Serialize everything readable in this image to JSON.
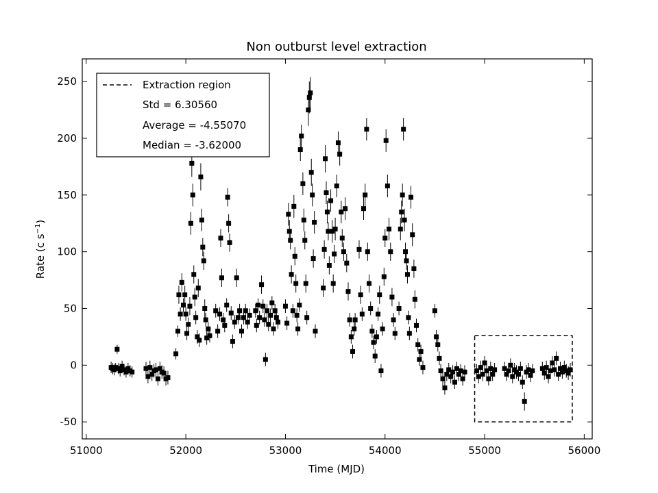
{
  "chart_data": {
    "type": "scatter",
    "title": "Non outburst level extraction",
    "xlabel": "Time (MJD)",
    "ylabel": "Rate (c s",
    "ylabel_sup": "−1",
    "ylabel_close": ")",
    "xlim": [
      50960,
      56080
    ],
    "ylim": [
      -65,
      270
    ],
    "x_ticks": [
      51000,
      52000,
      53000,
      54000,
      55000,
      56000
    ],
    "x_tick_labels": [
      "51000",
      "52000",
      "53000",
      "54000",
      "55000",
      "56000"
    ],
    "y_ticks": [
      -50,
      0,
      50,
      100,
      150,
      200,
      250
    ],
    "y_tick_labels": [
      "-50",
      "0",
      "50",
      "100",
      "150",
      "200",
      "250"
    ],
    "legend": {
      "placement": "top-left",
      "entries": [
        {
          "label": "Extraction region",
          "marker": "dashed-line"
        },
        {
          "label": "Std = 6.30560",
          "marker": "none"
        },
        {
          "label": "Average = -4.55070",
          "marker": "none"
        },
        {
          "label": "Median = -3.62000",
          "marker": "none"
        }
      ]
    },
    "extraction_region": {
      "x_range": [
        54900,
        55880
      ],
      "y_range": [
        -50,
        26
      ]
    },
    "series": [
      {
        "color": "#000000",
        "marker": "square",
        "points": [
          [
            51250,
            -2,
            5
          ],
          [
            51265,
            -3,
            5
          ],
          [
            51280,
            -4,
            5
          ],
          [
            51295,
            -2,
            4
          ],
          [
            51310,
            14,
            4
          ],
          [
            51325,
            -3,
            5
          ],
          [
            51340,
            -5,
            5
          ],
          [
            51360,
            -1,
            5
          ],
          [
            51380,
            -4,
            5
          ],
          [
            51400,
            -6,
            5
          ],
          [
            51420,
            -3,
            5
          ],
          [
            51440,
            -5,
            5
          ],
          [
            51460,
            -6,
            5
          ],
          [
            51600,
            -3,
            6
          ],
          [
            51620,
            -10,
            6
          ],
          [
            51640,
            -2,
            6
          ],
          [
            51660,
            -8,
            6
          ],
          [
            51680,
            -5,
            6
          ],
          [
            51700,
            -4,
            6
          ],
          [
            51720,
            -12,
            6
          ],
          [
            51740,
            -3,
            6
          ],
          [
            51760,
            -6,
            6
          ],
          [
            51780,
            -7,
            6
          ],
          [
            51800,
            -12,
            6
          ],
          [
            51820,
            -11,
            6
          ],
          [
            51900,
            10,
            5
          ],
          [
            51920,
            30,
            5
          ],
          [
            51930,
            62,
            8
          ],
          [
            51945,
            45,
            6
          ],
          [
            51960,
            73,
            8
          ],
          [
            51975,
            53,
            6
          ],
          [
            51990,
            62,
            8
          ],
          [
            52000,
            45,
            6
          ],
          [
            52010,
            28,
            6
          ],
          [
            52025,
            36,
            6
          ],
          [
            52040,
            52,
            8
          ],
          [
            52050,
            125,
            10
          ],
          [
            52060,
            178,
            12
          ],
          [
            52070,
            150,
            10
          ],
          [
            52080,
            80,
            8
          ],
          [
            52090,
            60,
            8
          ],
          [
            52100,
            42,
            6
          ],
          [
            52115,
            25,
            6
          ],
          [
            52125,
            68,
            8
          ],
          [
            52135,
            22,
            6
          ],
          [
            52150,
            166,
            12
          ],
          [
            52160,
            128,
            10
          ],
          [
            52170,
            104,
            8
          ],
          [
            52180,
            92,
            8
          ],
          [
            52190,
            50,
            8
          ],
          [
            52200,
            40,
            6
          ],
          [
            52210,
            24,
            6
          ],
          [
            52225,
            32,
            6
          ],
          [
            52240,
            26,
            6
          ],
          [
            52300,
            48,
            6
          ],
          [
            52320,
            30,
            6
          ],
          [
            52340,
            45,
            6
          ],
          [
            52350,
            112,
            8
          ],
          [
            52360,
            77,
            8
          ],
          [
            52375,
            40,
            6
          ],
          [
            52390,
            35,
            6
          ],
          [
            52410,
            53,
            6
          ],
          [
            52420,
            148,
            8
          ],
          [
            52430,
            125,
            8
          ],
          [
            52440,
            108,
            8
          ],
          [
            52455,
            46,
            6
          ],
          [
            52470,
            21,
            6
          ],
          [
            52490,
            38,
            6
          ],
          [
            52510,
            77,
            8
          ],
          [
            52525,
            42,
            6
          ],
          [
            52540,
            48,
            6
          ],
          [
            52560,
            30,
            6
          ],
          [
            52580,
            42,
            6
          ],
          [
            52600,
            48,
            6
          ],
          [
            52620,
            38,
            6
          ],
          [
            52640,
            44,
            6
          ],
          [
            52700,
            48,
            6
          ],
          [
            52710,
            35,
            6
          ],
          [
            52725,
            53,
            6
          ],
          [
            52740,
            42,
            6
          ],
          [
            52760,
            71,
            8
          ],
          [
            52775,
            52,
            6
          ],
          [
            52790,
            40,
            6
          ],
          [
            52800,
            5,
            6
          ],
          [
            52815,
            48,
            6
          ],
          [
            52830,
            36,
            6
          ],
          [
            52850,
            44,
            6
          ],
          [
            52865,
            55,
            6
          ],
          [
            52880,
            32,
            6
          ],
          [
            52895,
            48,
            6
          ],
          [
            52910,
            42,
            6
          ],
          [
            52925,
            38,
            6
          ],
          [
            53000,
            52,
            6
          ],
          [
            53015,
            37,
            6
          ],
          [
            53030,
            133,
            10
          ],
          [
            53040,
            118,
            10
          ],
          [
            53050,
            110,
            8
          ],
          [
            53060,
            80,
            8
          ],
          [
            53075,
            48,
            6
          ],
          [
            53085,
            140,
            10
          ],
          [
            53095,
            96,
            8
          ],
          [
            53105,
            72,
            8
          ],
          [
            53115,
            44,
            6
          ],
          [
            53125,
            32,
            6
          ],
          [
            53140,
            53,
            6
          ],
          [
            53150,
            190,
            10
          ],
          [
            53160,
            202,
            10
          ],
          [
            53175,
            160,
            10
          ],
          [
            53185,
            128,
            10
          ],
          [
            53195,
            110,
            8
          ],
          [
            53205,
            72,
            8
          ],
          [
            53215,
            42,
            6
          ],
          [
            53230,
            225,
            14
          ],
          [
            53240,
            236,
            14
          ],
          [
            53250,
            240,
            14
          ],
          [
            53260,
            170,
            12
          ],
          [
            53270,
            150,
            10
          ],
          [
            53280,
            94,
            8
          ],
          [
            53290,
            126,
            10
          ],
          [
            53300,
            30,
            6
          ],
          [
            53380,
            68,
            8
          ],
          [
            53390,
            102,
            8
          ],
          [
            53400,
            182,
            12
          ],
          [
            53410,
            152,
            10
          ],
          [
            53420,
            135,
            10
          ],
          [
            53430,
            118,
            8
          ],
          [
            53440,
            88,
            8
          ],
          [
            53455,
            145,
            10
          ],
          [
            53470,
            118,
            10
          ],
          [
            53480,
            72,
            8
          ],
          [
            53490,
            98,
            8
          ],
          [
            53500,
            120,
            10
          ],
          [
            53515,
            158,
            10
          ],
          [
            53530,
            196,
            10
          ],
          [
            53545,
            186,
            10
          ],
          [
            53560,
            135,
            10
          ],
          [
            53570,
            112,
            8
          ],
          [
            53585,
            100,
            8
          ],
          [
            53600,
            138,
            10
          ],
          [
            53615,
            90,
            8
          ],
          [
            53630,
            65,
            8
          ],
          [
            53645,
            40,
            6
          ],
          [
            53660,
            25,
            6
          ],
          [
            53675,
            12,
            6
          ],
          [
            53690,
            32,
            6
          ],
          [
            53700,
            40,
            6
          ],
          [
            53740,
            102,
            8
          ],
          [
            53755,
            62,
            8
          ],
          [
            53770,
            45,
            6
          ],
          [
            53785,
            138,
            10
          ],
          [
            53800,
            150,
            10
          ],
          [
            53815,
            208,
            10
          ],
          [
            53825,
            100,
            8
          ],
          [
            53840,
            72,
            8
          ],
          [
            53855,
            50,
            6
          ],
          [
            53870,
            30,
            6
          ],
          [
            53885,
            20,
            6
          ],
          [
            53900,
            8,
            6
          ],
          [
            53915,
            25,
            6
          ],
          [
            53930,
            45,
            6
          ],
          [
            53945,
            62,
            8
          ],
          [
            53960,
            -5,
            6
          ],
          [
            53975,
            32,
            6
          ],
          [
            53990,
            78,
            8
          ],
          [
            54000,
            112,
            8
          ],
          [
            54010,
            198,
            10
          ],
          [
            54025,
            158,
            10
          ],
          [
            54040,
            120,
            10
          ],
          [
            54055,
            100,
            8
          ],
          [
            54070,
            60,
            8
          ],
          [
            54085,
            40,
            6
          ],
          [
            54100,
            28,
            6
          ],
          [
            54140,
            50,
            6
          ],
          [
            54155,
            120,
            10
          ],
          [
            54165,
            135,
            10
          ],
          [
            54175,
            150,
            10
          ],
          [
            54185,
            208,
            10
          ],
          [
            54195,
            128,
            10
          ],
          [
            54205,
            100,
            8
          ],
          [
            54215,
            92,
            8
          ],
          [
            54225,
            80,
            8
          ],
          [
            54235,
            42,
            6
          ],
          [
            54245,
            28,
            6
          ],
          [
            54260,
            148,
            10
          ],
          [
            54275,
            115,
            10
          ],
          [
            54290,
            85,
            8
          ],
          [
            54300,
            58,
            8
          ],
          [
            54315,
            35,
            6
          ],
          [
            54330,
            18,
            6
          ],
          [
            54345,
            5,
            6
          ],
          [
            54360,
            12,
            6
          ],
          [
            54380,
            -2,
            6
          ],
          [
            54500,
            48,
            6
          ],
          [
            54515,
            25,
            6
          ],
          [
            54530,
            18,
            6
          ],
          [
            54545,
            6,
            6
          ],
          [
            54560,
            -5,
            6
          ],
          [
            54580,
            -12,
            6
          ],
          [
            54600,
            -20,
            6
          ],
          [
            54620,
            -8,
            6
          ],
          [
            54640,
            -4,
            6
          ],
          [
            54660,
            -10,
            6
          ],
          [
            54680,
            -6,
            6
          ],
          [
            54700,
            -15,
            6
          ],
          [
            54720,
            -3,
            6
          ],
          [
            54740,
            -8,
            6
          ],
          [
            54760,
            -5,
            6
          ],
          [
            54780,
            -12,
            6
          ],
          [
            54800,
            -6,
            6
          ],
          [
            54920,
            -5,
            6
          ],
          [
            54940,
            -10,
            6
          ],
          [
            54960,
            -2,
            6
          ],
          [
            54980,
            -8,
            6
          ],
          [
            55000,
            2,
            6
          ],
          [
            55020,
            -5,
            6
          ],
          [
            55040,
            -12,
            6
          ],
          [
            55060,
            -3,
            6
          ],
          [
            55080,
            -8,
            6
          ],
          [
            55100,
            -4,
            6
          ],
          [
            55200,
            -3,
            6
          ],
          [
            55220,
            -8,
            6
          ],
          [
            55240,
            -5,
            6
          ],
          [
            55260,
            0,
            6
          ],
          [
            55280,
            -10,
            6
          ],
          [
            55300,
            -4,
            6
          ],
          [
            55320,
            -6,
            6
          ],
          [
            55340,
            -8,
            6
          ],
          [
            55360,
            -3,
            6
          ],
          [
            55380,
            -15,
            6
          ],
          [
            55400,
            -32,
            8
          ],
          [
            55420,
            -6,
            6
          ],
          [
            55440,
            -4,
            6
          ],
          [
            55460,
            -9,
            6
          ],
          [
            55480,
            -5,
            6
          ],
          [
            55580,
            -3,
            6
          ],
          [
            55600,
            -7,
            6
          ],
          [
            55620,
            -2,
            6
          ],
          [
            55640,
            -10,
            6
          ],
          [
            55660,
            -5,
            6
          ],
          [
            55680,
            2,
            6
          ],
          [
            55700,
            -4,
            6
          ],
          [
            55720,
            6,
            6
          ],
          [
            55740,
            -8,
            6
          ],
          [
            55760,
            -3,
            6
          ],
          [
            55780,
            -6,
            6
          ],
          [
            55800,
            -2,
            6
          ],
          [
            55820,
            -5,
            6
          ],
          [
            55840,
            -7,
            6
          ],
          [
            55860,
            -4,
            6
          ]
        ]
      }
    ]
  }
}
